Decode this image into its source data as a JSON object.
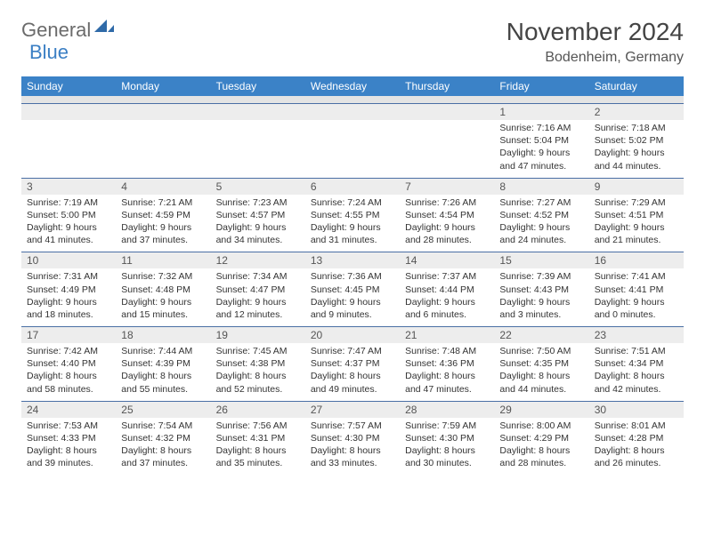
{
  "brand": {
    "general": "General",
    "blue": "Blue",
    "icon_color": "#2f6aa8"
  },
  "title": "November 2024",
  "location": "Bodenheim, Germany",
  "colors": {
    "header_bg": "#3b82c7",
    "header_text": "#ffffff",
    "row_divider": "#4a6fa5",
    "daynum_bg": "#ededed",
    "text": "#333333"
  },
  "day_labels": [
    "Sunday",
    "Monday",
    "Tuesday",
    "Wednesday",
    "Thursday",
    "Friday",
    "Saturday"
  ],
  "weeks": [
    [
      null,
      null,
      null,
      null,
      null,
      {
        "n": "1",
        "sr": "7:16 AM",
        "ss": "5:04 PM",
        "dl1": "9 hours",
        "dl2": "and 47 minutes."
      },
      {
        "n": "2",
        "sr": "7:18 AM",
        "ss": "5:02 PM",
        "dl1": "9 hours",
        "dl2": "and 44 minutes."
      }
    ],
    [
      {
        "n": "3",
        "sr": "7:19 AM",
        "ss": "5:00 PM",
        "dl1": "9 hours",
        "dl2": "and 41 minutes."
      },
      {
        "n": "4",
        "sr": "7:21 AM",
        "ss": "4:59 PM",
        "dl1": "9 hours",
        "dl2": "and 37 minutes."
      },
      {
        "n": "5",
        "sr": "7:23 AM",
        "ss": "4:57 PM",
        "dl1": "9 hours",
        "dl2": "and 34 minutes."
      },
      {
        "n": "6",
        "sr": "7:24 AM",
        "ss": "4:55 PM",
        "dl1": "9 hours",
        "dl2": "and 31 minutes."
      },
      {
        "n": "7",
        "sr": "7:26 AM",
        "ss": "4:54 PM",
        "dl1": "9 hours",
        "dl2": "and 28 minutes."
      },
      {
        "n": "8",
        "sr": "7:27 AM",
        "ss": "4:52 PM",
        "dl1": "9 hours",
        "dl2": "and 24 minutes."
      },
      {
        "n": "9",
        "sr": "7:29 AM",
        "ss": "4:51 PM",
        "dl1": "9 hours",
        "dl2": "and 21 minutes."
      }
    ],
    [
      {
        "n": "10",
        "sr": "7:31 AM",
        "ss": "4:49 PM",
        "dl1": "9 hours",
        "dl2": "and 18 minutes."
      },
      {
        "n": "11",
        "sr": "7:32 AM",
        "ss": "4:48 PM",
        "dl1": "9 hours",
        "dl2": "and 15 minutes."
      },
      {
        "n": "12",
        "sr": "7:34 AM",
        "ss": "4:47 PM",
        "dl1": "9 hours",
        "dl2": "and 12 minutes."
      },
      {
        "n": "13",
        "sr": "7:36 AM",
        "ss": "4:45 PM",
        "dl1": "9 hours",
        "dl2": "and 9 minutes."
      },
      {
        "n": "14",
        "sr": "7:37 AM",
        "ss": "4:44 PM",
        "dl1": "9 hours",
        "dl2": "and 6 minutes."
      },
      {
        "n": "15",
        "sr": "7:39 AM",
        "ss": "4:43 PM",
        "dl1": "9 hours",
        "dl2": "and 3 minutes."
      },
      {
        "n": "16",
        "sr": "7:41 AM",
        "ss": "4:41 PM",
        "dl1": "9 hours",
        "dl2": "and 0 minutes."
      }
    ],
    [
      {
        "n": "17",
        "sr": "7:42 AM",
        "ss": "4:40 PM",
        "dl1": "8 hours",
        "dl2": "and 58 minutes."
      },
      {
        "n": "18",
        "sr": "7:44 AM",
        "ss": "4:39 PM",
        "dl1": "8 hours",
        "dl2": "and 55 minutes."
      },
      {
        "n": "19",
        "sr": "7:45 AM",
        "ss": "4:38 PM",
        "dl1": "8 hours",
        "dl2": "and 52 minutes."
      },
      {
        "n": "20",
        "sr": "7:47 AM",
        "ss": "4:37 PM",
        "dl1": "8 hours",
        "dl2": "and 49 minutes."
      },
      {
        "n": "21",
        "sr": "7:48 AM",
        "ss": "4:36 PM",
        "dl1": "8 hours",
        "dl2": "and 47 minutes."
      },
      {
        "n": "22",
        "sr": "7:50 AM",
        "ss": "4:35 PM",
        "dl1": "8 hours",
        "dl2": "and 44 minutes."
      },
      {
        "n": "23",
        "sr": "7:51 AM",
        "ss": "4:34 PM",
        "dl1": "8 hours",
        "dl2": "and 42 minutes."
      }
    ],
    [
      {
        "n": "24",
        "sr": "7:53 AM",
        "ss": "4:33 PM",
        "dl1": "8 hours",
        "dl2": "and 39 minutes."
      },
      {
        "n": "25",
        "sr": "7:54 AM",
        "ss": "4:32 PM",
        "dl1": "8 hours",
        "dl2": "and 37 minutes."
      },
      {
        "n": "26",
        "sr": "7:56 AM",
        "ss": "4:31 PM",
        "dl1": "8 hours",
        "dl2": "and 35 minutes."
      },
      {
        "n": "27",
        "sr": "7:57 AM",
        "ss": "4:30 PM",
        "dl1": "8 hours",
        "dl2": "and 33 minutes."
      },
      {
        "n": "28",
        "sr": "7:59 AM",
        "ss": "4:30 PM",
        "dl1": "8 hours",
        "dl2": "and 30 minutes."
      },
      {
        "n": "29",
        "sr": "8:00 AM",
        "ss": "4:29 PM",
        "dl1": "8 hours",
        "dl2": "and 28 minutes."
      },
      {
        "n": "30",
        "sr": "8:01 AM",
        "ss": "4:28 PM",
        "dl1": "8 hours",
        "dl2": "and 26 minutes."
      }
    ]
  ],
  "labels": {
    "sunrise": "Sunrise:",
    "sunset": "Sunset:",
    "daylight": "Daylight:"
  }
}
